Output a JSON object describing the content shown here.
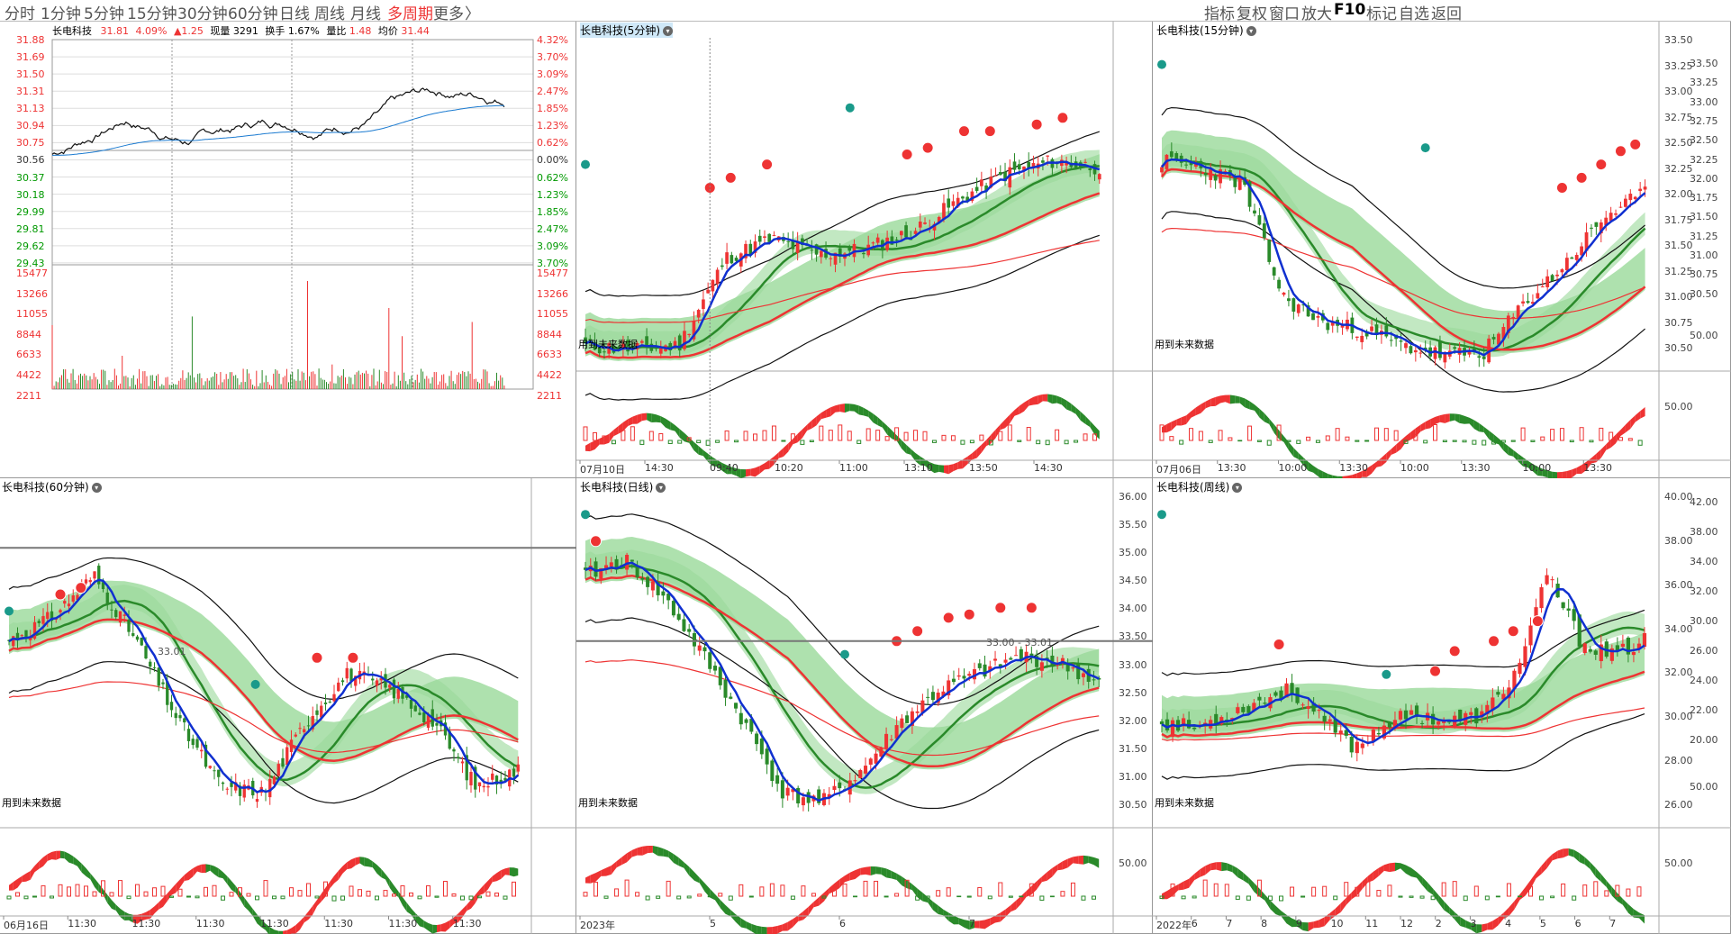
{
  "toolbar": {
    "tabs": [
      "分时",
      "1分钟",
      "5分钟",
      "15分钟",
      "30分钟",
      "60分钟",
      "日线",
      "周线",
      "月线",
      "多周期",
      "更多"
    ],
    "more_arrow": "〉",
    "active": "多周期",
    "right": [
      "指标",
      "复权",
      "窗口",
      "放大",
      "F10",
      "标记",
      "自选",
      "返回"
    ]
  },
  "intraday": {
    "stock": "长电科技",
    "price": "31.81",
    "pct": "4.09%",
    "chg": "▲1.25",
    "vol_label": "现量",
    "vol": "3291",
    "turn_label": "换手",
    "turn": "1.67%",
    "ratio_label": "量比",
    "ratio": "1.48",
    "avg_label": "均价",
    "avg": "31.44",
    "prices": [
      "31.88",
      "31.69",
      "31.50",
      "31.31",
      "31.13",
      "30.94",
      "30.75",
      "30.56",
      "30.37",
      "30.18",
      "29.99",
      "29.81",
      "29.62",
      "29.43"
    ],
    "pcts": [
      "4.32%",
      "3.70%",
      "3.09%",
      "2.47%",
      "1.85%",
      "1.23%",
      "0.62%",
      "0.00%",
      "0.62%",
      "1.23%",
      "1.85%",
      "2.47%",
      "3.09%",
      "3.70%"
    ],
    "vols": [
      "15477",
      "13266",
      "11055",
      "8844",
      "6633",
      "4422",
      "2211"
    ]
  },
  "panels": {
    "m5": {
      "title": "长电科技(5分钟)",
      "future": "用到未来数据",
      "rlabels": [],
      "mid": "",
      "xlabels": [
        "07月10日",
        "14:30",
        "09:40",
        "10:20",
        "11:00",
        "13:10",
        "13:50",
        "14:30"
      ]
    },
    "m15": {
      "title": "长电科技(15分钟)",
      "future": "用到未来数据",
      "rlabels": [
        "33.50",
        "33.25",
        "33.00",
        "32.75",
        "32.50",
        "32.25",
        "32.00",
        "31.75",
        "31.50",
        "31.25",
        "31.00",
        "30.75",
        "30.50"
      ],
      "mid": "50.00",
      "xlabels": [
        "07月06日",
        "13:30",
        "10:00",
        "13:30",
        "10:00",
        "13:30",
        "10:00",
        "13:30"
      ]
    },
    "m60": {
      "title": "长电科技(60分钟)",
      "future": "用到未来数据",
      "rlabels": [],
      "mid": "",
      "hline": "33.01",
      "xlabels": [
        "06月16日",
        "11:30",
        "11:30",
        "11:30",
        "11:30",
        "11:30",
        "11:30",
        "11:30"
      ]
    },
    "day": {
      "title": "长电科技(日线)",
      "future": "用到未来数据",
      "rlabels": [
        "36.00",
        "35.50",
        "35.00",
        "34.50",
        "34.00",
        "33.50",
        "33.00",
        "32.50",
        "32.00",
        "31.50",
        "31.00",
        "30.50"
      ],
      "mid": "50.00",
      "hline": "33.00 - 33.01",
      "xlabels": [
        "2023年",
        "5",
        "6",
        "7"
      ]
    },
    "week": {
      "title": "长电科技(周线)",
      "future": "用到未来数据",
      "rlabels": [
        "40.00",
        "38.00",
        "36.00",
        "34.00",
        "32.00",
        "30.00",
        "28.00",
        "26.00"
      ],
      "mid": "50.00",
      "xlabels": [
        "2022年",
        "6",
        "7",
        "8",
        "9",
        "10",
        "11",
        "12",
        "2",
        "3",
        "4",
        "5",
        "6",
        "7"
      ]
    }
  },
  "farright": {
    "top": [
      "33.50",
      "33.25",
      "33.00",
      "32.75",
      "32.50",
      "32.25",
      "32.00",
      "31.75",
      "31.50",
      "31.25",
      "31.00",
      "30.75",
      "30.50"
    ],
    "top_mid": "50.00",
    "bottom": [
      "42.00",
      "38.00",
      "34.00",
      "32.00",
      "30.00",
      "26.00",
      "24.00",
      "22.00",
      "20.00"
    ],
    "bottom_mid": "50.00"
  },
  "colors": {
    "up": "#e33",
    "down": "#2a8a2a",
    "ma": "#1030d0",
    "band": "#9ad99a",
    "band2": "#a8e4e4"
  }
}
